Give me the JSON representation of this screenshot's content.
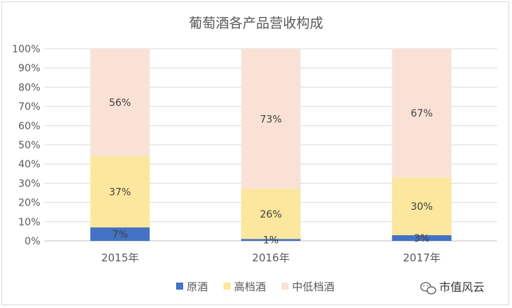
{
  "chart_data": {
    "type": "bar",
    "stacked": true,
    "percent": true,
    "title": "葡萄酒各产品营收构成",
    "categories": [
      "2015年",
      "2016年",
      "2017年"
    ],
    "y_ticks": [
      "0%",
      "10%",
      "20%",
      "30%",
      "40%",
      "50%",
      "60%",
      "70%",
      "80%",
      "90%",
      "100%"
    ],
    "ylim": [
      0,
      100
    ],
    "grid": true,
    "legend_position": "bottom",
    "series": [
      {
        "name": "原酒",
        "color": "#4472c4",
        "values": [
          7,
          1,
          3
        ],
        "labels": [
          "7%",
          "1%",
          "3%"
        ]
      },
      {
        "name": "高档酒",
        "color": "#fbe79d",
        "values": [
          37,
          26,
          30
        ],
        "labels": [
          "37%",
          "26%",
          "30%"
        ]
      },
      {
        "name": "中低档酒",
        "color": "#f9e2d5",
        "values": [
          56,
          73,
          67
        ],
        "labels": [
          "56%",
          "73%",
          "67%"
        ]
      }
    ]
  },
  "watermark": {
    "text": "市值风云",
    "icon": "wechat-icon"
  }
}
